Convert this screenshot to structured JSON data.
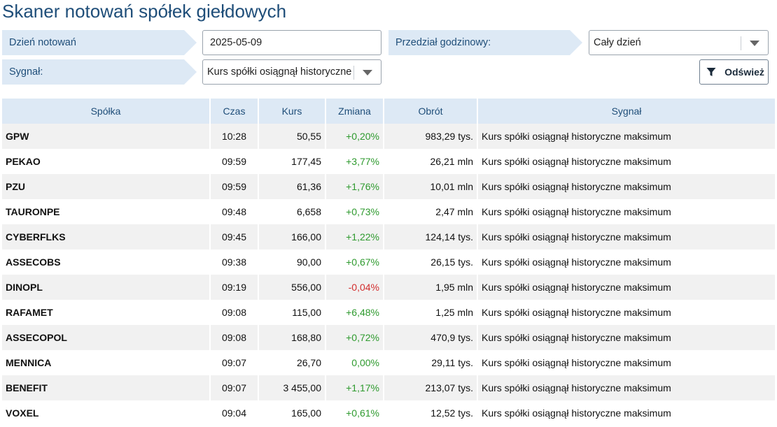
{
  "page": {
    "title": "Skaner notowań spółek giełdowych"
  },
  "filters": {
    "date_label": "Dzień notowań",
    "date_value": "2025-05-09",
    "hours_label": "Przedział godzinowy:",
    "hours_value": "Cały dzień",
    "signal_label": "Sygnał:",
    "signal_value": "Kurs spółki osiągnął historyczne maksimum",
    "refresh_label": "Odśwież"
  },
  "table": {
    "columns": [
      "Spółka",
      "Czas",
      "Kurs",
      "Zmiana",
      "Obrót",
      "Sygnał"
    ],
    "rows": [
      {
        "name": "GPW",
        "time": "10:28",
        "price": "50,55",
        "change": "+0,20%",
        "turnover": "983,29 tys.",
        "signal": "Kurs spółki osiągnął historyczne maksimum",
        "dir": "pos"
      },
      {
        "name": "PEKAO",
        "time": "09:59",
        "price": "177,45",
        "change": "+3,77%",
        "turnover": "26,21 mln",
        "signal": "Kurs spółki osiągnął historyczne maksimum",
        "dir": "pos"
      },
      {
        "name": "PZU",
        "time": "09:59",
        "price": "61,36",
        "change": "+1,76%",
        "turnover": "10,01 mln",
        "signal": "Kurs spółki osiągnął historyczne maksimum",
        "dir": "pos"
      },
      {
        "name": "TAURONPE",
        "time": "09:48",
        "price": "6,658",
        "change": "+0,73%",
        "turnover": "2,47 mln",
        "signal": "Kurs spółki osiągnął historyczne maksimum",
        "dir": "pos"
      },
      {
        "name": "CYBERFLKS",
        "time": "09:45",
        "price": "166,00",
        "change": "+1,22%",
        "turnover": "124,14 tys.",
        "signal": "Kurs spółki osiągnął historyczne maksimum",
        "dir": "pos"
      },
      {
        "name": "ASSECOBS",
        "time": "09:38",
        "price": "90,00",
        "change": "+0,67%",
        "turnover": "26,15 tys.",
        "signal": "Kurs spółki osiągnął historyczne maksimum",
        "dir": "pos"
      },
      {
        "name": "DINOPL",
        "time": "09:19",
        "price": "556,00",
        "change": "-0,04%",
        "turnover": "1,95 mln",
        "signal": "Kurs spółki osiągnął historyczne maksimum",
        "dir": "neg"
      },
      {
        "name": "RAFAMET",
        "time": "09:08",
        "price": "115,00",
        "change": "+6,48%",
        "turnover": "1,25 mln",
        "signal": "Kurs spółki osiągnął historyczne maksimum",
        "dir": "pos"
      },
      {
        "name": "ASSECOPOL",
        "time": "09:08",
        "price": "168,80",
        "change": "+0,72%",
        "turnover": "470,9 tys.",
        "signal": "Kurs spółki osiągnął historyczne maksimum",
        "dir": "pos"
      },
      {
        "name": "MENNICA",
        "time": "09:07",
        "price": "26,70",
        "change": "0,00%",
        "turnover": "29,11 tys.",
        "signal": "Kurs spółki osiągnął historyczne maksimum",
        "dir": "pos"
      },
      {
        "name": "BENEFIT",
        "time": "09:07",
        "price": "3 455,00",
        "change": "+1,17%",
        "turnover": "213,07 tys.",
        "signal": "Kurs spółki osiągnął historyczne maksimum",
        "dir": "pos"
      },
      {
        "name": "VOXEL",
        "time": "09:04",
        "price": "165,00",
        "change": "+0,61%",
        "turnover": "12,52 tys.",
        "signal": "Kurs spółki osiągnął historyczne maksimum",
        "dir": "pos"
      }
    ]
  },
  "colors": {
    "positive": "#2e9a2e",
    "negative": "#d22e2e",
    "accent": "#1f4e79",
    "header_bg": "#dde9f5"
  },
  "icons": {
    "refresh_button": "filter-icon",
    "select_arrow": "chevron-down-icon"
  }
}
